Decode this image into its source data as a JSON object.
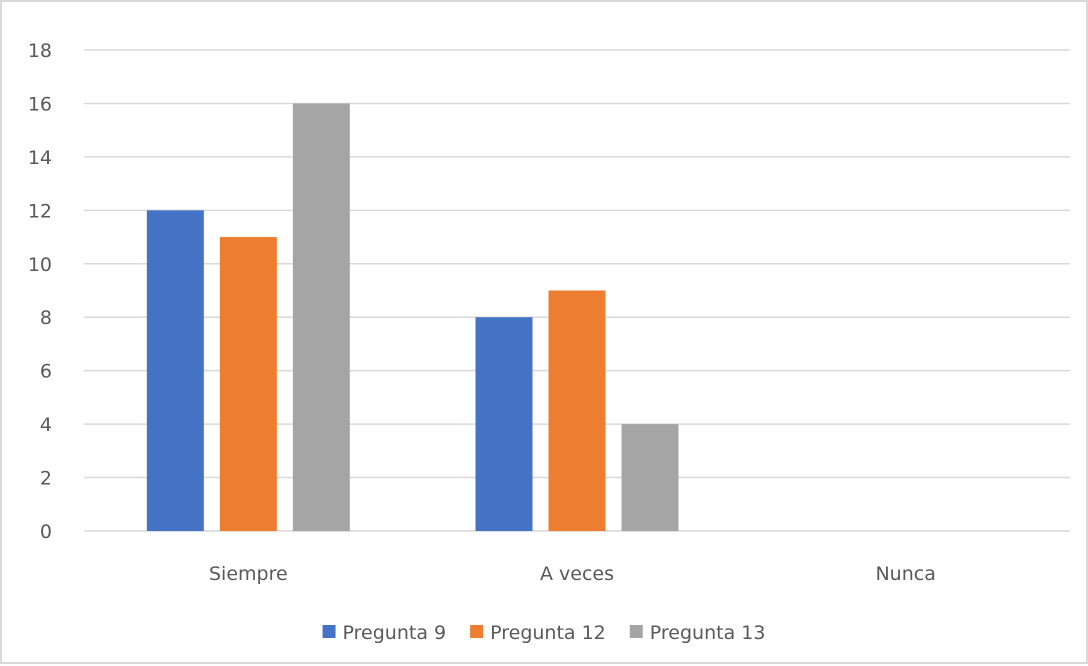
{
  "chart_data": {
    "type": "bar",
    "title": "",
    "xlabel": "",
    "ylabel": "",
    "categories": [
      "Siempre",
      "A veces",
      "Nunca"
    ],
    "series": [
      {
        "name": "Pregunta 9",
        "color": "#4472c4",
        "values": [
          12,
          8,
          0
        ]
      },
      {
        "name": "Pregunta 12",
        "color": "#ed7d31",
        "values": [
          11,
          9,
          0
        ]
      },
      {
        "name": "Pregunta 13",
        "color": "#a5a5a5",
        "values": [
          16,
          4,
          0
        ]
      }
    ],
    "ylim": [
      0,
      18
    ],
    "yticks": [
      0,
      2,
      4,
      6,
      8,
      10,
      12,
      14,
      16,
      18
    ],
    "grid": true,
    "legend_position": "bottom",
    "gridline_color": "#d9d9d9"
  }
}
